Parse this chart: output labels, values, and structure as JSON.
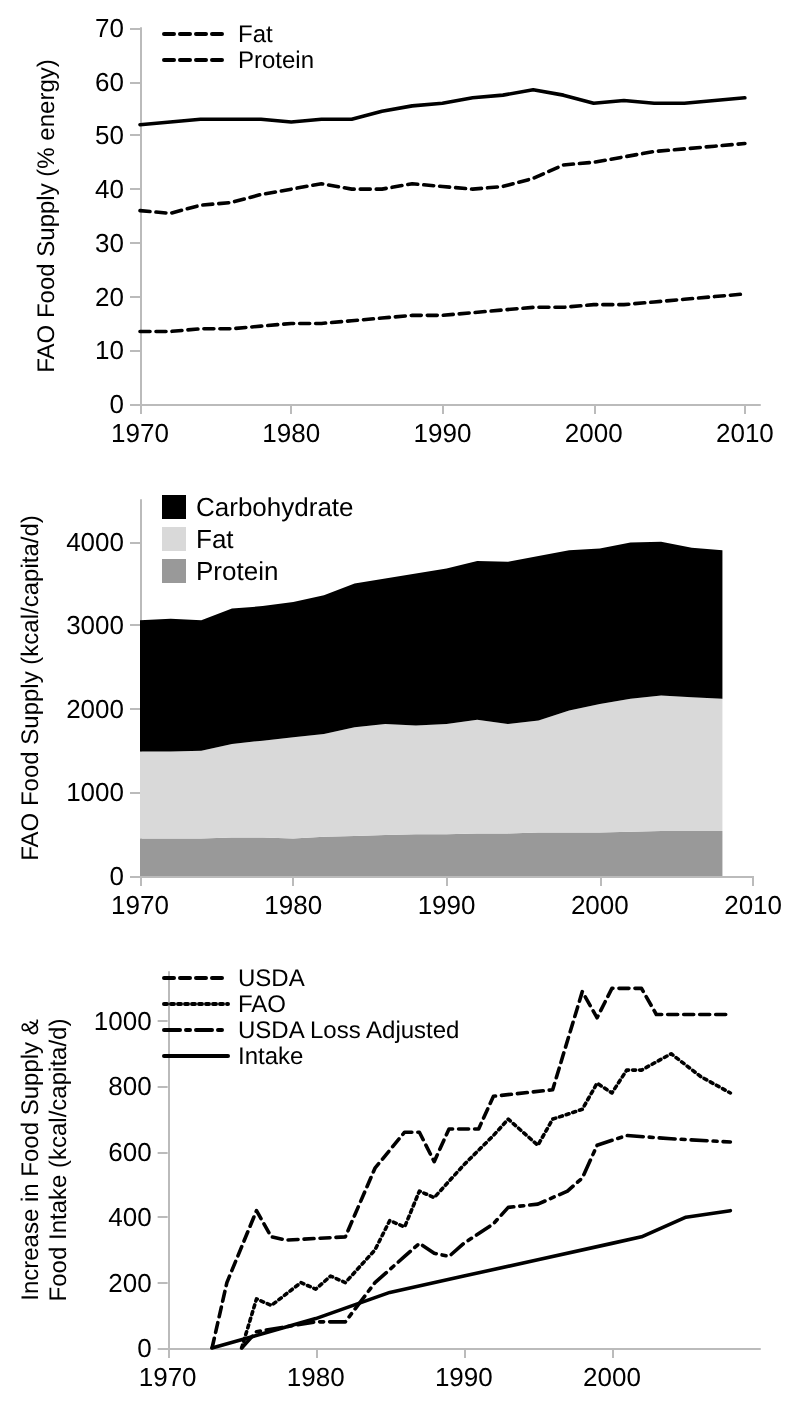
{
  "chart_data": [
    {
      "type": "line",
      "ylabel": "FAO Food Supply (% energy)",
      "x": [
        1970,
        1972,
        1974,
        1976,
        1978,
        1980,
        1982,
        1984,
        1986,
        1988,
        1990,
        1992,
        1994,
        1996,
        1998,
        2000,
        2002,
        2004,
        2006,
        2008,
        2010
      ],
      "xlim": [
        1970,
        2011
      ],
      "xticks": [
        1970,
        1980,
        1990,
        2000,
        2010
      ],
      "ylim": [
        0,
        70
      ],
      "yticks": [
        0,
        10,
        20,
        30,
        40,
        50,
        60,
        70
      ],
      "grid": false,
      "legend": "top left",
      "marker": "none",
      "series": [
        {
          "color": "#000000",
          "line_style": "solid",
          "values": [
            52,
            52.5,
            53,
            53,
            53,
            52.5,
            53,
            53,
            54.5,
            55.5,
            56,
            57,
            57.5,
            58.5,
            57.5,
            56,
            56.5,
            56,
            56,
            56.5,
            57
          ]
        },
        {
          "name": "Fat",
          "color": "#000000",
          "line_style": "dashed",
          "values": [
            36,
            35.5,
            37,
            37.5,
            39,
            40,
            41,
            40,
            40,
            41,
            40.5,
            40,
            40.5,
            42,
            44.5,
            45,
            46,
            47,
            47.5,
            48,
            48.5
          ]
        },
        {
          "name": "Protein",
          "color": "#000000",
          "line_style": "dashed",
          "values": [
            13.5,
            13.5,
            14,
            14,
            14.5,
            15,
            15,
            15.5,
            16,
            16.5,
            16.5,
            17,
            17.5,
            18,
            18,
            18.5,
            18.5,
            19,
            19.5,
            20,
            20.5
          ]
        }
      ]
    },
    {
      "type": "area",
      "stacked": true,
      "ylabel": "FAO Food Supply (kcal/capita/d)",
      "x": [
        1970,
        1972,
        1974,
        1976,
        1978,
        1980,
        1982,
        1984,
        1986,
        1988,
        1990,
        1992,
        1994,
        1996,
        1998,
        2000,
        2002,
        2004,
        2006,
        2008
      ],
      "xlim": [
        1970,
        2010
      ],
      "xticks": [
        1970,
        1980,
        1990,
        2000,
        2010
      ],
      "ylim": [
        0,
        4500
      ],
      "yticks": [
        0,
        1000,
        2000,
        3000,
        4000
      ],
      "grid": false,
      "legend": "top left",
      "series": [
        {
          "name": "Protein",
          "color": "#999999",
          "values": [
            450,
            450,
            450,
            460,
            460,
            450,
            470,
            480,
            490,
            500,
            500,
            510,
            510,
            520,
            520,
            520,
            530,
            540,
            540,
            540
          ]
        },
        {
          "name": "Fat",
          "color": "#d9d9d9",
          "values": [
            1040,
            1040,
            1050,
            1120,
            1160,
            1210,
            1230,
            1300,
            1330,
            1300,
            1320,
            1360,
            1310,
            1340,
            1460,
            1540,
            1590,
            1620,
            1600,
            1580
          ]
        },
        {
          "name": "Carbohydrate",
          "color": "#000000",
          "values": [
            1570,
            1590,
            1560,
            1620,
            1610,
            1620,
            1660,
            1720,
            1740,
            1820,
            1860,
            1900,
            1940,
            1970,
            1920,
            1860,
            1870,
            1840,
            1790,
            1780
          ]
        }
      ]
    },
    {
      "type": "line",
      "ylabel": "Increase in Food Supply & Food Intake (kcal/capita/d)",
      "xlim": [
        1970,
        2010
      ],
      "xticks": [
        1970,
        1980,
        1990,
        2000
      ],
      "ylim": [
        0,
        1150
      ],
      "yticks": [
        0,
        200,
        400,
        600,
        800,
        1000
      ],
      "grid": false,
      "legend": "top left",
      "marker": "none",
      "series": [
        {
          "name": "USDA",
          "color": "#000000",
          "line_style": "dashed",
          "x": [
            1973,
            1974,
            1976,
            1977,
            1978,
            1982,
            1984,
            1986,
            1987,
            1988,
            1989,
            1991,
            1992,
            1996,
            1998,
            1999,
            2000,
            2002,
            2003,
            2008
          ],
          "values": [
            0,
            200,
            420,
            340,
            330,
            340,
            550,
            660,
            660,
            570,
            670,
            670,
            770,
            790,
            1090,
            1010,
            1100,
            1100,
            1020,
            1020
          ]
        },
        {
          "name": "FAO",
          "color": "#000000",
          "line_style": "dotted",
          "x": [
            1975,
            1976,
            1977,
            1979,
            1980,
            1981,
            1982,
            1984,
            1985,
            1986,
            1987,
            1988,
            1990,
            1992,
            1993,
            1995,
            1996,
            1998,
            1999,
            2000,
            2001,
            2002,
            2004,
            2006,
            2008
          ],
          "values": [
            0,
            150,
            130,
            200,
            180,
            220,
            200,
            300,
            390,
            370,
            480,
            460,
            560,
            650,
            700,
            620,
            700,
            730,
            810,
            780,
            850,
            850,
            900,
            830,
            780
          ]
        },
        {
          "name": "USDA Loss Adjusted",
          "color": "#000000",
          "line_style": "dashdot",
          "x": [
            1975,
            1976,
            1980,
            1982,
            1984,
            1986,
            1987,
            1988,
            1989,
            1990,
            1992,
            1993,
            1995,
            1997,
            1998,
            1999,
            2001,
            2004,
            2008
          ],
          "values": [
            0,
            50,
            80,
            80,
            200,
            280,
            320,
            290,
            280,
            320,
            380,
            430,
            440,
            480,
            520,
            620,
            650,
            640,
            630
          ]
        },
        {
          "name": "Intake",
          "color": "#000000",
          "line_style": "solid",
          "x": [
            1973,
            1980,
            1985,
            1990,
            1995,
            2000,
            2002,
            2005,
            2008
          ],
          "values": [
            0,
            90,
            170,
            220,
            270,
            320,
            340,
            400,
            420
          ]
        }
      ]
    }
  ]
}
